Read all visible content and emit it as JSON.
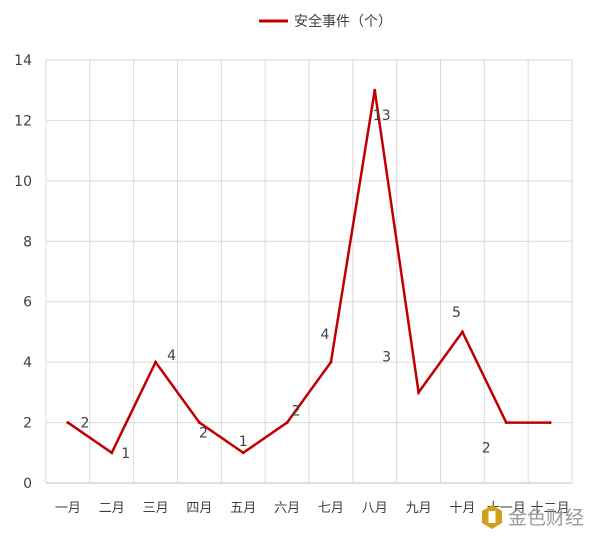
{
  "chart_data": {
    "type": "line",
    "categories": [
      "一月",
      "二月",
      "三月",
      "四月",
      "五月",
      "六月",
      "七月",
      "八月",
      "九月",
      "十月",
      "十一月",
      "十二月"
    ],
    "series": [
      {
        "name": "安全事件（个）",
        "values": [
          2,
          1,
          4,
          2,
          1,
          2,
          4,
          13,
          3,
          5,
          2,
          2
        ]
      }
    ],
    "ylim": [
      0,
      14
    ],
    "yticks": [
      0,
      2,
      4,
      6,
      8,
      10,
      12,
      14
    ],
    "grid": true,
    "legend_position": "top-center",
    "colors": {
      "series": "#c00000",
      "grid": "#d9d9d9"
    }
  },
  "watermark": {
    "text": "金色财经"
  }
}
